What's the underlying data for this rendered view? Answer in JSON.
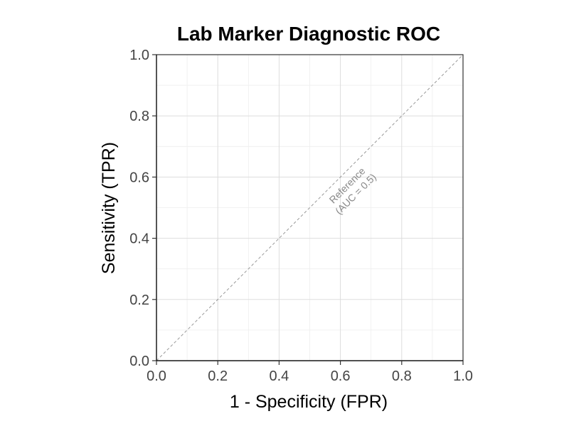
{
  "chart_data": {
    "type": "line",
    "title": "Lab Marker Diagnostic ROC",
    "xlabel": "1 - Specificity (FPR)",
    "ylabel": "Sensitivity (TPR)",
    "xlim": [
      0,
      1
    ],
    "ylim": [
      0,
      1
    ],
    "x_ticks": [
      0.0,
      0.2,
      0.4,
      0.6,
      0.8,
      1.0
    ],
    "y_ticks": [
      0.0,
      0.2,
      0.4,
      0.6,
      0.8,
      1.0
    ],
    "x_tick_labels": [
      "0.0",
      "0.2",
      "0.4",
      "0.6",
      "0.8",
      "1.0"
    ],
    "y_tick_labels": [
      "0.0",
      "0.2",
      "0.4",
      "0.6",
      "0.8",
      "1.0"
    ],
    "grid": true,
    "series": [
      {
        "style": "dashed",
        "color": "#999999",
        "x": [
          0,
          1
        ],
        "y": [
          0,
          1
        ]
      }
    ],
    "annotations": [
      {
        "line1": "Reference",
        "line2": "(AUC = 0.5)",
        "x": 0.635,
        "y": 0.56
      }
    ]
  }
}
